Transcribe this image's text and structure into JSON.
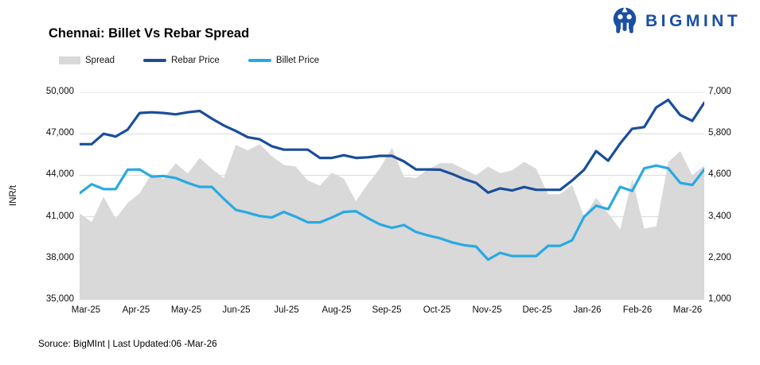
{
  "logo": {
    "text": "BIGMINT",
    "color": "#1b4fa5"
  },
  "chart": {
    "title": "Chennai: Billet Vs Rebar Spread"
  },
  "footer": {
    "text": "Soruce: BigMInt | Last Updated:06 -Mar-26"
  },
  "chart_data": {
    "type": "combo (area + line)",
    "title": "Chennai: Billet Vs Rebar Spread",
    "x_labels": [
      "Mar-25",
      "Apr-25",
      "May-25",
      "Jun-25",
      "Jul-25",
      "Aug-25",
      "Sep-25",
      "Oct-25",
      "Nov-25",
      "Dec-25",
      "Jan-26",
      "Feb-26",
      "Mar-26"
    ],
    "x_note": "weekly data points, Mar-2025 through early Mar-2026",
    "grid": true,
    "legend_position": "top-left",
    "left_axis": {
      "title": "INR/t",
      "min": 35000,
      "max": 50000,
      "tick_labels": [
        "50,000",
        "47,000",
        "44,000",
        "41,000",
        "38,000",
        "35,000"
      ]
    },
    "right_axis": {
      "min": 1000,
      "max": 7000,
      "tick_labels": [
        "7,000",
        "5,800",
        "4,600",
        "3,400",
        "2,200",
        "1,000"
      ]
    },
    "colors": {
      "spread": "#d9d9d9",
      "rebar": "#1a4e9b",
      "billet": "#29a9e2",
      "gridline": "#d9d9d9",
      "axis_line": "#a9a9a9"
    },
    "series": [
      {
        "name": "Spread",
        "type": "area",
        "axis": "right",
        "color": "#d9d9d9",
        "values": [
          3500,
          3250,
          3980,
          3350,
          3800,
          4080,
          4650,
          4500,
          4950,
          4650,
          5100,
          4790,
          4510,
          5480,
          5320,
          5500,
          5150,
          4900,
          4850,
          4450,
          4300,
          4675,
          4500,
          3850,
          4350,
          4800,
          5400,
          4550,
          4520,
          4770,
          4950,
          4950,
          4780,
          4600,
          4850,
          4660,
          4740,
          4990,
          4790,
          4050,
          4050,
          4320,
          3400,
          3950,
          3500,
          3040,
          4490,
          3060,
          3120,
          4980,
          5300,
          4600,
          4880
        ]
      },
      {
        "name": "Rebar Price",
        "type": "line",
        "axis": "left",
        "color": "#1a4e9b",
        "values": [
          46250,
          46250,
          47000,
          46800,
          47300,
          48500,
          48550,
          48500,
          48400,
          48550,
          48650,
          48100,
          47600,
          47200,
          46750,
          46600,
          46100,
          45850,
          45850,
          45850,
          45250,
          45250,
          45450,
          45250,
          45300,
          45400,
          45400,
          45000,
          44420,
          44420,
          44400,
          44100,
          43730,
          43450,
          42750,
          43050,
          42900,
          43150,
          42950,
          42950,
          42950,
          43620,
          44400,
          45750,
          45050,
          46300,
          47360,
          47480,
          48900,
          49450,
          48350,
          47930,
          49250
        ]
      },
      {
        "name": "Billet Price",
        "type": "line",
        "axis": "left",
        "color": "#29a9e2",
        "values": [
          42700,
          43350,
          43000,
          43000,
          44400,
          44420,
          43900,
          43950,
          43800,
          43450,
          43160,
          43160,
          42300,
          41500,
          41300,
          41050,
          40950,
          41350,
          41000,
          40600,
          40600,
          40950,
          41350,
          41400,
          40900,
          40450,
          40200,
          40400,
          39900,
          39650,
          39450,
          39150,
          38950,
          38850,
          37900,
          38390,
          38160,
          38160,
          38160,
          38900,
          38900,
          39300,
          41000,
          41800,
          41550,
          43160,
          42870,
          44500,
          44700,
          44500,
          43450,
          43300,
          44420
        ]
      }
    ]
  }
}
